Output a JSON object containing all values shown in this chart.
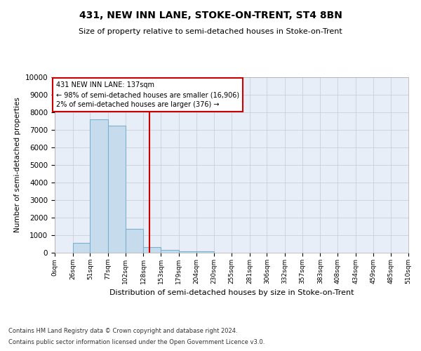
{
  "title": "431, NEW INN LANE, STOKE-ON-TRENT, ST4 8BN",
  "subtitle": "Size of property relative to semi-detached houses in Stoke-on-Trent",
  "xlabel": "Distribution of semi-detached houses by size in Stoke-on-Trent",
  "ylabel": "Number of semi-detached properties",
  "bin_edges": [
    0,
    26,
    51,
    77,
    102,
    128,
    153,
    179,
    204,
    230,
    255,
    281,
    306,
    332,
    357,
    383,
    408,
    434,
    459,
    485,
    510
  ],
  "bar_heights": [
    0,
    560,
    7600,
    7250,
    1350,
    320,
    150,
    100,
    80,
    0,
    0,
    0,
    0,
    0,
    0,
    0,
    0,
    0,
    0,
    0
  ],
  "bar_color": "#c6dcec",
  "bar_edge_color": "#7ab0d0",
  "vline_x": 137,
  "vline_color": "#cc0000",
  "annotation_line1": "431 NEW INN LANE: 137sqm",
  "annotation_line2": "← 98% of semi-detached houses are smaller (16,906)",
  "annotation_line3": "2% of semi-detached houses are larger (376) →",
  "annotation_box_facecolor": "white",
  "annotation_box_edgecolor": "#cc0000",
  "ylim": [
    0,
    10000
  ],
  "yticks": [
    0,
    1000,
    2000,
    3000,
    4000,
    5000,
    6000,
    7000,
    8000,
    9000,
    10000
  ],
  "tick_labels": [
    "0sqm",
    "26sqm",
    "51sqm",
    "77sqm",
    "102sqm",
    "128sqm",
    "153sqm",
    "179sqm",
    "204sqm",
    "230sqm",
    "255sqm",
    "281sqm",
    "306sqm",
    "332sqm",
    "357sqm",
    "383sqm",
    "408sqm",
    "434sqm",
    "459sqm",
    "485sqm",
    "510sqm"
  ],
  "footer_line1": "Contains HM Land Registry data © Crown copyright and database right 2024.",
  "footer_line2": "Contains public sector information licensed under the Open Government Licence v3.0.",
  "background_color": "#e8eef8",
  "grid_color": "#c8c8d8",
  "title_fontsize": 10,
  "subtitle_fontsize": 8,
  "ylabel_fontsize": 7.5,
  "xlabel_fontsize": 8,
  "ytick_fontsize": 7.5,
  "xtick_fontsize": 6.5,
  "annotation_fontsize": 7,
  "footer_fontsize": 6
}
